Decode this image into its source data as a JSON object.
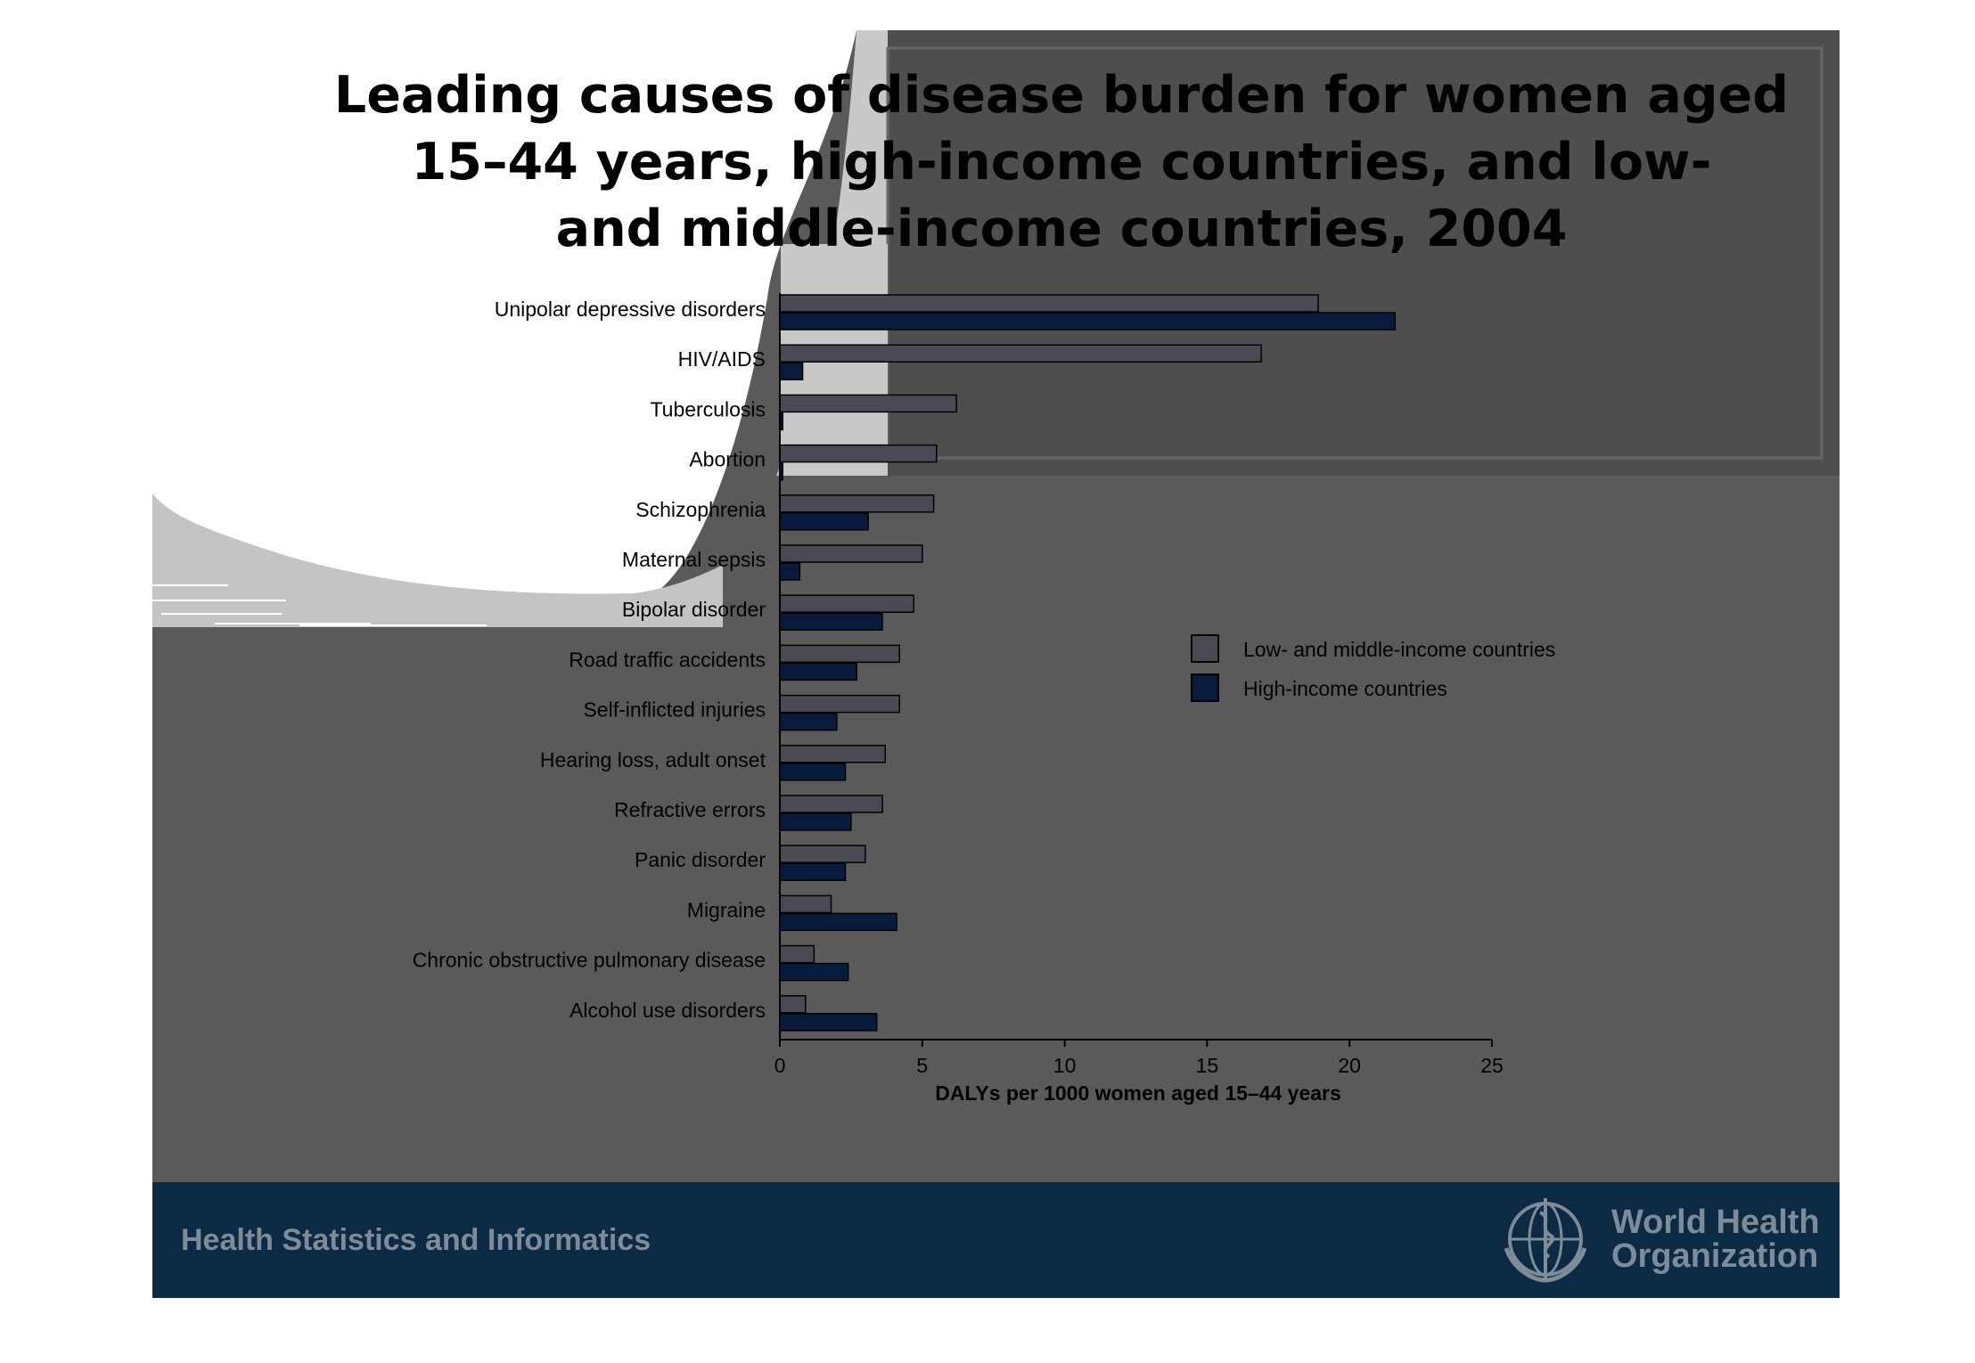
{
  "title": "Leading causes of disease burden for women aged\n15–44 years, high-income countries, and low-\nand middle-income countries, 2004",
  "footer": {
    "left_text": "Health Statistics and Informatics",
    "org_name": "World Health\nOrganization",
    "logo_icon": "who-emblem-icon"
  },
  "colors": {
    "slide_background": "#5a5a5a",
    "footer_background": "#0d2a45",
    "low_middle_income": "#4a4a55",
    "high_income": "#0a1a3c"
  },
  "chart_data": {
    "type": "bar",
    "orientation": "horizontal",
    "title": "Leading causes of disease burden for women aged 15–44 years, high-income countries, and low- and middle-income countries, 2004",
    "categories": [
      "Unipolar depressive disorders",
      "HIV/AIDS",
      "Tuberculosis",
      "Abortion",
      "Schizophrenia",
      "Maternal sepsis",
      "Bipolar disorder",
      "Road traffic accidents",
      "Self-inflicted injuries",
      "Hearing loss, adult onset",
      "Refractive errors",
      "Panic disorder",
      "Migraine",
      "Chronic obstructive pulmonary disease",
      "Alcohol use disorders"
    ],
    "series": [
      {
        "name": "Low- and middle-income countries",
        "color": "#4a4a55",
        "values": [
          18.9,
          16.9,
          6.2,
          5.5,
          5.4,
          5.0,
          4.7,
          4.2,
          4.2,
          3.7,
          3.6,
          3.0,
          1.8,
          1.2,
          0.9
        ]
      },
      {
        "name": "High-income countries",
        "color": "#0a1a3c",
        "values": [
          21.6,
          0.8,
          0.1,
          0.1,
          3.1,
          0.7,
          3.6,
          2.7,
          2.0,
          2.3,
          2.5,
          2.3,
          4.1,
          2.4,
          3.4
        ]
      }
    ],
    "xlabel": "DALYs per 1000 women aged 15–44 years",
    "ylabel": "",
    "xlim": [
      0,
      25
    ],
    "xticks": [
      "0",
      "5",
      "10",
      "15",
      "20",
      "25"
    ],
    "legend_position": "right",
    "grid": false
  }
}
